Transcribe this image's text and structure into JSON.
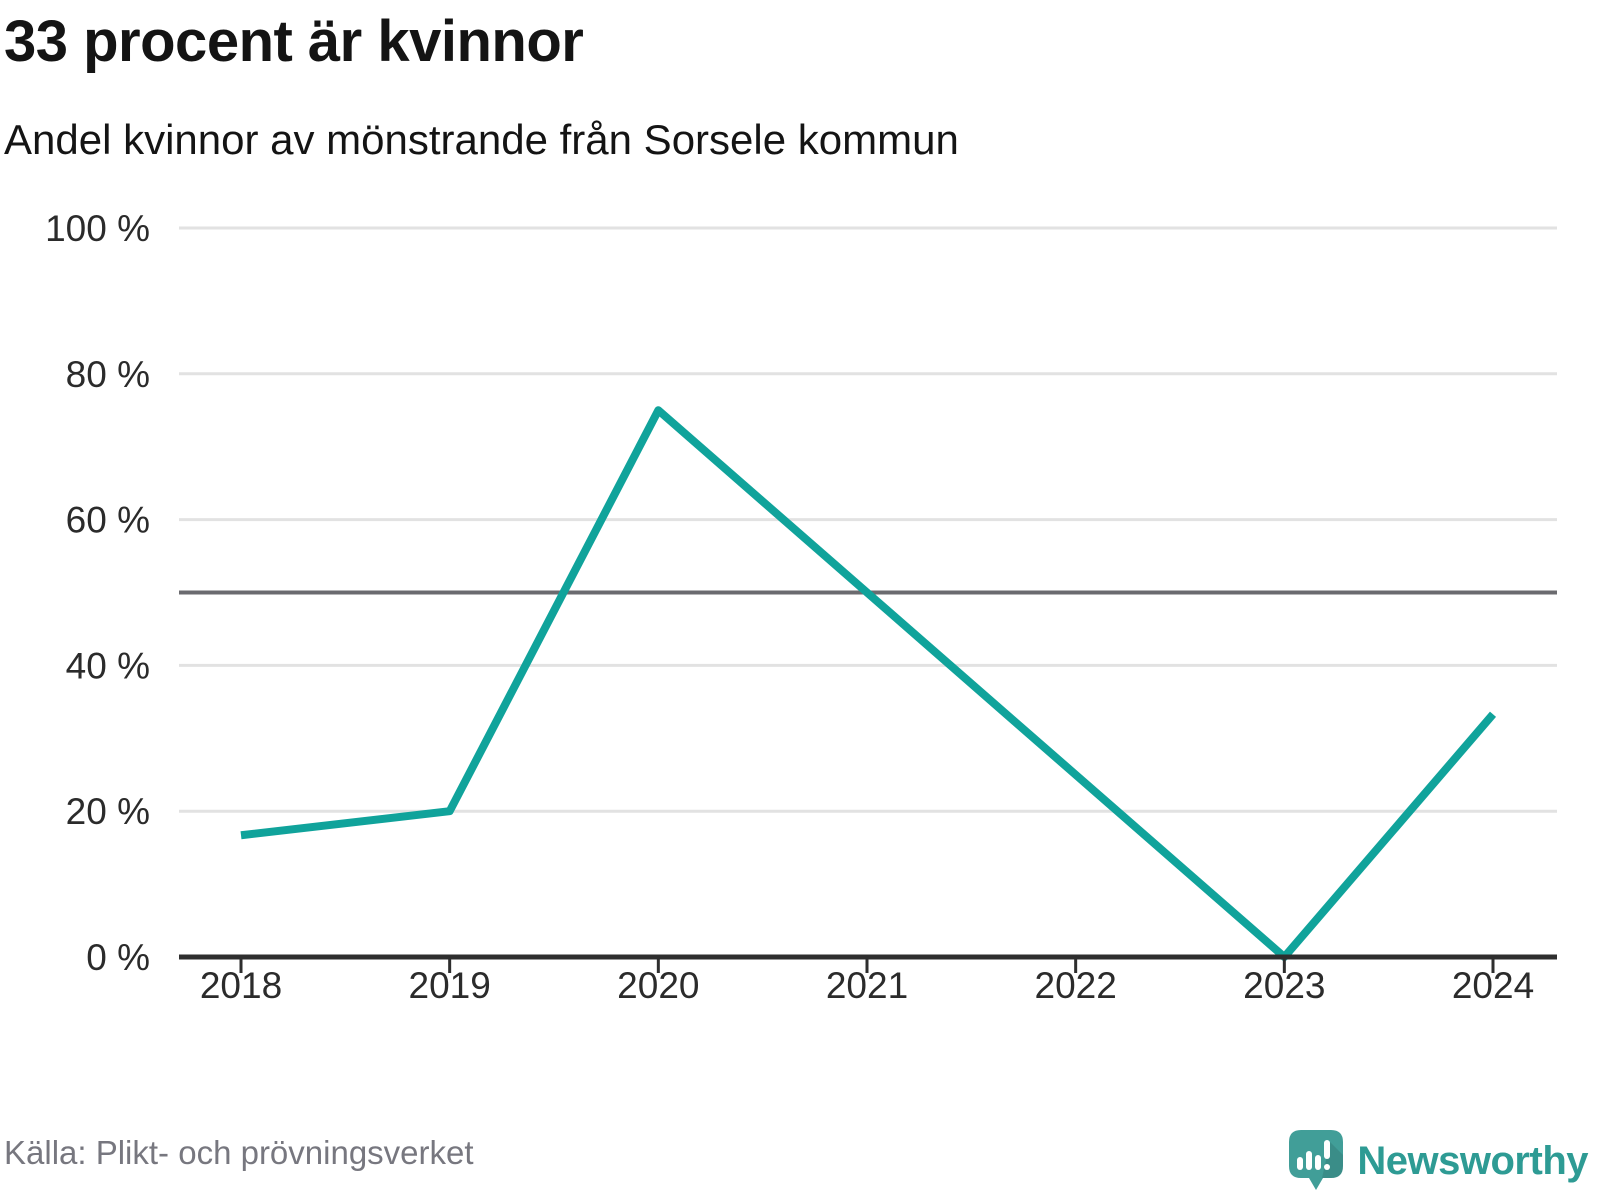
{
  "header": {
    "title": "33 procent är kvinnor",
    "subtitle": "Andel kvinnor av mönstrande från Sorsele kommun"
  },
  "footer": {
    "source": "Källa: Plikt- och prövningsverket",
    "logo_text": "Newsworthy",
    "logo_icon": "newsworthy-speech-bubble-bar-chart-icon"
  },
  "chart_data": {
    "type": "line",
    "title": "33 procent är kvinnor",
    "subtitle": "Andel kvinnor av mönstrande från Sorsele kommun",
    "source": "Källa: Plikt- och prövningsverket",
    "categories": [
      "2018",
      "2019",
      "2020",
      "2021",
      "2022",
      "2023",
      "2024"
    ],
    "series": [
      {
        "name": "Andel kvinnor av mönstrande",
        "values": [
          16.7,
          20,
          75,
          50,
          25,
          0,
          33.3
        ]
      }
    ],
    "unit": "%",
    "ylim": [
      0,
      100
    ],
    "yticks": [
      {
        "value": 0,
        "label": "0 %"
      },
      {
        "value": 20,
        "label": "20 %"
      },
      {
        "value": 40,
        "label": "40 %"
      },
      {
        "value": 60,
        "label": "60 %"
      },
      {
        "value": 80,
        "label": "80 %"
      },
      {
        "value": 100,
        "label": "100 %"
      }
    ],
    "reference_line": {
      "value": 50
    },
    "grid": true,
    "legend": "none"
  },
  "colors": {
    "line": "#10a39b",
    "grid": "#e2e2e2",
    "reference_line": "#6b6b6f",
    "axis": "#2e2e2e",
    "tick_text": "#2b2b2b",
    "title_text": "#141414",
    "source_text": "#77777f",
    "logo_teal": "#2e9b94",
    "logo_bubble": "#419e98"
  }
}
